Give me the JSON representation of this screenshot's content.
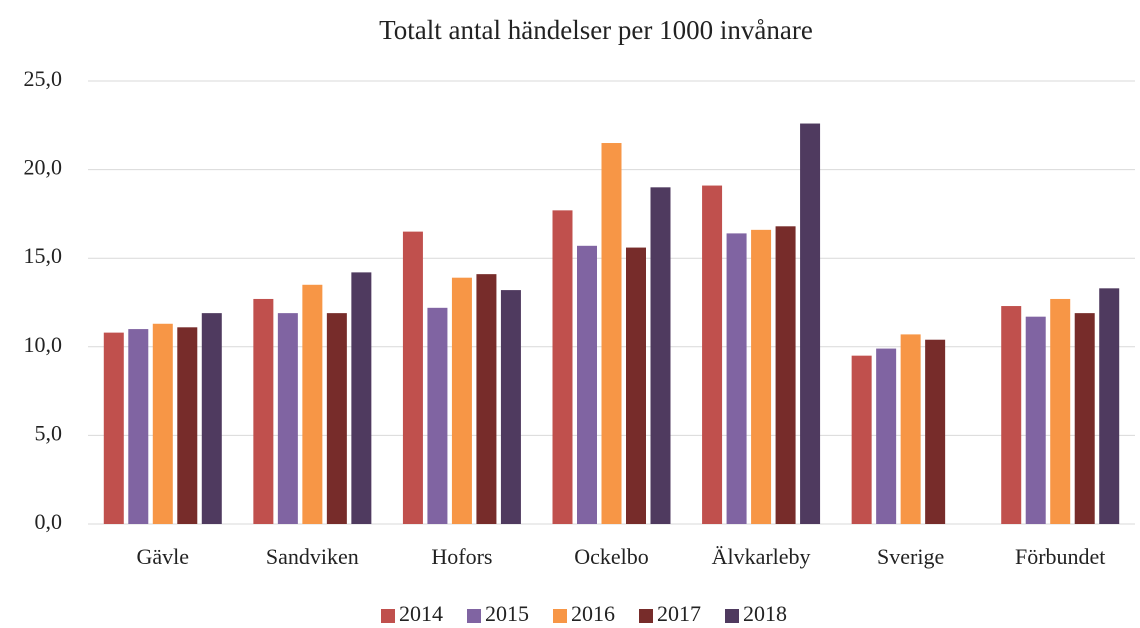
{
  "chart_data": {
    "type": "bar",
    "title": "Totalt antal händelser per 1000 invånare",
    "categories": [
      "Gävle",
      "Sandviken",
      "Hofors",
      "Ockelbo",
      "Älvkarleby",
      "Sverige",
      "Förbundet"
    ],
    "series": [
      {
        "name": "2014",
        "color": "#c0504d",
        "values": [
          10.8,
          12.7,
          16.5,
          17.7,
          19.1,
          9.5,
          12.3
        ]
      },
      {
        "name": "2015",
        "color": "#8064a2",
        "values": [
          11.0,
          11.9,
          12.2,
          15.7,
          16.4,
          9.9,
          11.7
        ]
      },
      {
        "name": "2016",
        "color": "#f79646",
        "values": [
          11.3,
          13.5,
          13.9,
          21.5,
          16.6,
          10.7,
          12.7
        ]
      },
      {
        "name": "2017",
        "color": "#772c2a",
        "values": [
          11.1,
          11.9,
          14.1,
          15.6,
          16.8,
          10.4,
          11.9
        ]
      },
      {
        "name": "2018",
        "color": "#4f3a5f",
        "values": [
          11.9,
          14.2,
          13.2,
          19.0,
          22.6,
          null,
          13.3
        ]
      }
    ],
    "ylim": [
      0,
      25
    ],
    "yticks": [
      {
        "value": 0,
        "label": "0,0"
      },
      {
        "value": 5,
        "label": "5,0"
      },
      {
        "value": 10,
        "label": "10,0"
      },
      {
        "value": 15,
        "label": "15,0"
      },
      {
        "value": 20,
        "label": "20,0"
      },
      {
        "value": 25,
        "label": "25,0"
      }
    ],
    "grid": true,
    "legend": "bottom"
  }
}
